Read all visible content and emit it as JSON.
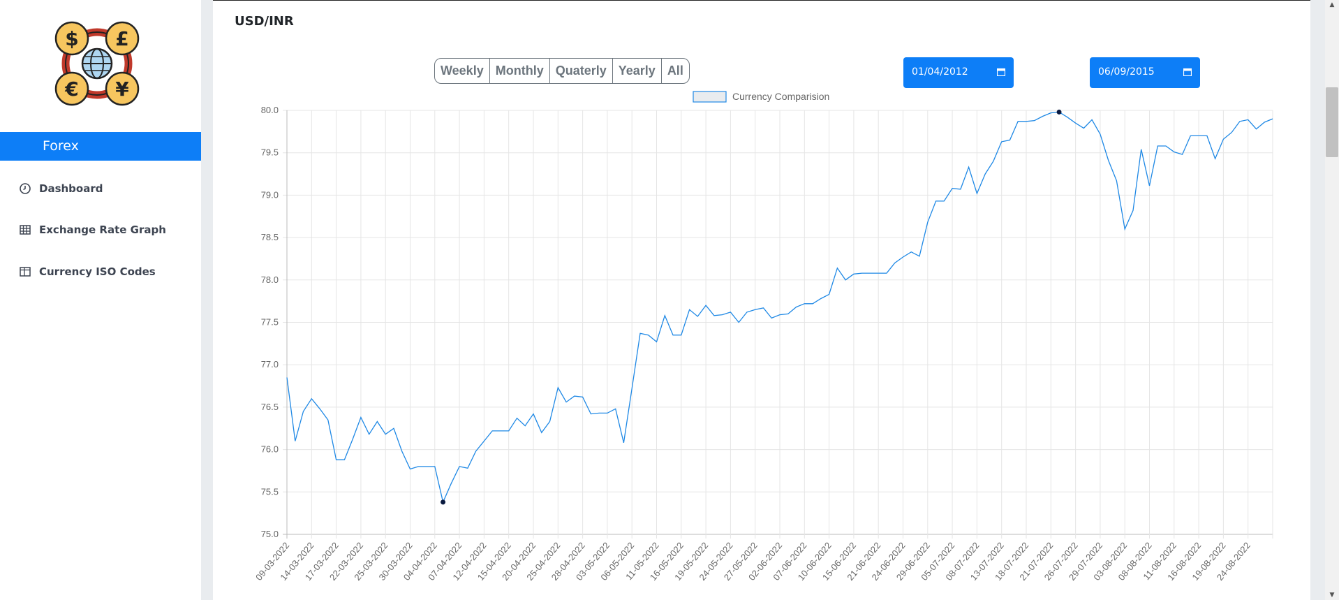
{
  "sidebar": {
    "brand": "Forex",
    "items": [
      {
        "label": "Dashboard",
        "icon": "clock-icon"
      },
      {
        "label": "Exchange Rate Graph",
        "icon": "table-icon"
      },
      {
        "label": "Currency ISO Codes",
        "icon": "columns-icon"
      }
    ]
  },
  "page": {
    "title": "USD/INR"
  },
  "range_buttons": [
    "Weekly",
    "Monthly",
    "Quaterly",
    "Yearly",
    "All"
  ],
  "date_from": "01/04/2012",
  "date_to": "06/09/2015",
  "colors": {
    "accent": "#0d7ef7",
    "line": "#1e88e5"
  },
  "chart_data": {
    "type": "line",
    "legend": "Currency Comparision",
    "legend_position": "top-center",
    "grid": true,
    "ylim": [
      75.0,
      80.0
    ],
    "yticks": [
      "80.0",
      "79.5",
      "79.0",
      "78.5",
      "78.0",
      "77.5",
      "77.0",
      "76.5",
      "76.0",
      "75.5",
      "75.0"
    ],
    "xtick_labels": [
      "09-03-2022",
      "14-03-2022",
      "17-03-2022",
      "22-03-2022",
      "25-03-2022",
      "30-03-2022",
      "04-04-2022",
      "07-04-2022",
      "12-04-2022",
      "15-04-2022",
      "20-04-2022",
      "25-04-2022",
      "28-04-2022",
      "03-05-2022",
      "06-05-2022",
      "11-05-2022",
      "16-05-2022",
      "19-05-2022",
      "24-05-2022",
      "27-05-2022",
      "02-06-2022",
      "07-06-2022",
      "10-06-2022",
      "15-06-2022",
      "21-06-2022",
      "24-06-2022",
      "29-06-2022",
      "05-07-2022",
      "08-07-2022",
      "13-07-2022",
      "18-07-2022",
      "21-07-2022",
      "26-07-2022",
      "29-07-2022",
      "03-08-2022",
      "08-08-2022",
      "11-08-2022",
      "16-08-2022",
      "19-08-2022",
      "24-08-2022"
    ],
    "values": [
      76.85,
      76.1,
      76.45,
      76.6,
      76.48,
      76.35,
      75.88,
      75.88,
      76.12,
      76.38,
      76.18,
      76.33,
      76.18,
      76.25,
      75.98,
      75.77,
      75.8,
      75.8,
      75.8,
      75.38,
      75.6,
      75.8,
      75.78,
      75.98,
      76.1,
      76.22,
      76.22,
      76.22,
      76.37,
      76.28,
      76.42,
      76.2,
      76.33,
      76.73,
      76.56,
      76.63,
      76.62,
      76.42,
      76.43,
      76.43,
      76.48,
      76.08,
      76.72,
      77.37,
      77.35,
      77.27,
      77.58,
      77.35,
      77.35,
      77.65,
      77.57,
      77.7,
      77.58,
      77.59,
      77.62,
      77.5,
      77.62,
      77.65,
      77.67,
      77.55,
      77.59,
      77.6,
      77.68,
      77.72,
      77.72,
      77.78,
      77.83,
      78.14,
      78.0,
      78.07,
      78.08,
      78.08,
      78.08,
      78.08,
      78.2,
      78.27,
      78.33,
      78.28,
      78.68,
      78.93,
      78.93,
      79.08,
      79.07,
      79.33,
      79.02,
      79.25,
      79.4,
      79.63,
      79.65,
      79.87,
      79.87,
      79.88,
      79.93,
      79.97,
      79.98,
      79.92,
      79.85,
      79.79,
      79.89,
      79.72,
      79.41,
      79.17,
      78.6,
      78.82,
      79.54,
      79.11,
      79.58,
      79.58,
      79.51,
      79.48,
      79.7,
      79.7,
      79.7,
      79.43,
      79.66,
      79.74,
      79.87,
      79.89,
      79.78,
      79.86,
      79.9
    ],
    "min_point": {
      "index": 19,
      "value": 75.38
    },
    "max_point": {
      "index": 94,
      "value": 79.98
    }
  }
}
